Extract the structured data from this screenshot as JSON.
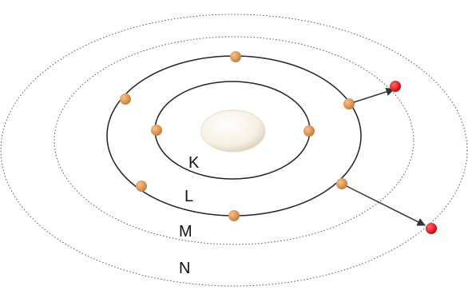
{
  "diagram": {
    "shells": [
      {
        "label": "K",
        "style": "solid"
      },
      {
        "label": "L",
        "style": "solid"
      },
      {
        "label": "M",
        "style": "dotted"
      },
      {
        "label": "N",
        "style": "dotted"
      }
    ],
    "electron_color": "#e39a57",
    "excited_electron_color": "#e8101a",
    "nucleus_color": "#f6f0e3",
    "orbit_color": "#222222"
  }
}
